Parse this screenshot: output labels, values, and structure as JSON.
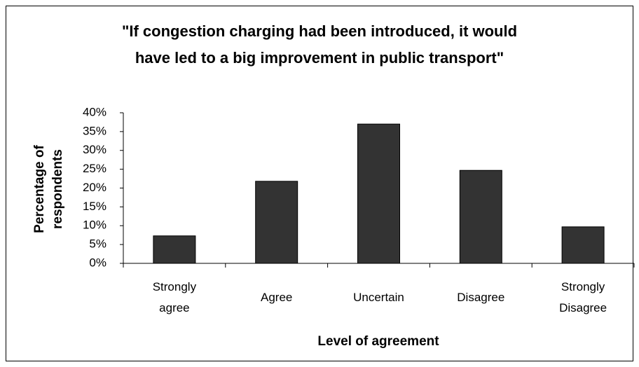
{
  "chart_data": {
    "type": "bar",
    "title": "\"If congestion charging had been introduced, it would have led to a big improvement in public transport\"",
    "x_label": "Level of agreement",
    "y_label": "Percentage of respondents",
    "categories": [
      "Strongly agree",
      "Agree",
      "Uncertain",
      "Disagree",
      "Strongly Disagree"
    ],
    "values": [
      7.3,
      21.8,
      37,
      24.7,
      9.7
    ],
    "color": "#333333",
    "ylim": [
      0,
      40
    ],
    "yticks": [
      {
        "value": 0,
        "label": "0%"
      },
      {
        "value": 5,
        "label": "5%"
      },
      {
        "value": 10,
        "label": "10%"
      },
      {
        "value": 15,
        "label": "15%"
      },
      {
        "value": 20,
        "label": "20%"
      },
      {
        "value": 25,
        "label": "25%"
      },
      {
        "value": 30,
        "label": "30%"
      },
      {
        "value": 35,
        "label": "35%"
      },
      {
        "value": 40,
        "label": "40%"
      }
    ],
    "grid": false
  }
}
